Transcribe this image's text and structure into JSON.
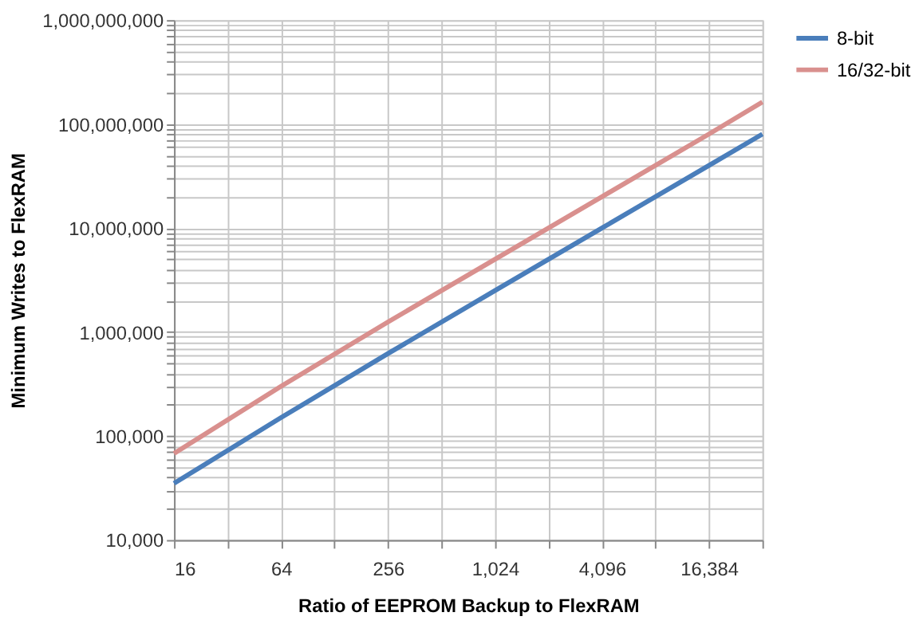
{
  "chart_data": {
    "type": "line",
    "xlabel": "Ratio of EEPROM Backup to FlexRAM",
    "ylabel": "Minimum Writes to FlexRAM",
    "log": "xy",
    "grid": true,
    "legend": "right",
    "marker": "none",
    "line_style": "solid",
    "xlim": [
      16,
      32768
    ],
    "xticks": [
      16,
      {
        "value": 32,
        "label": null
      },
      64,
      {
        "value": 128,
        "label": null
      },
      256,
      {
        "value": 512,
        "label": null
      },
      {
        "value": 1024,
        "label": "1,024"
      },
      {
        "value": 2048,
        "label": null
      },
      {
        "value": 4096,
        "label": "4,096"
      },
      {
        "value": 8192,
        "label": null
      },
      {
        "value": 16384,
        "label": "16,384"
      },
      {
        "value": 32768,
        "label": null
      }
    ],
    "ylim": [
      10000,
      1000000000
    ],
    "yticks": [
      {
        "value": 10000,
        "label": "10,000"
      },
      {
        "value": 20000,
        "label": null
      },
      {
        "value": 30000,
        "label": null
      },
      {
        "value": 40000,
        "label": null
      },
      {
        "value": 50000,
        "label": null
      },
      {
        "value": 60000,
        "label": null
      },
      {
        "value": 70000,
        "label": null
      },
      {
        "value": 80000,
        "label": null
      },
      {
        "value": 90000,
        "label": null
      },
      {
        "value": 100000,
        "label": "100,000"
      },
      {
        "value": 200000,
        "label": null
      },
      {
        "value": 300000,
        "label": null
      },
      {
        "value": 400000,
        "label": null
      },
      {
        "value": 500000,
        "label": null
      },
      {
        "value": 600000,
        "label": null
      },
      {
        "value": 700000,
        "label": null
      },
      {
        "value": 800000,
        "label": null
      },
      {
        "value": 900000,
        "label": null
      },
      {
        "value": 1000000,
        "label": "1,000,000"
      },
      {
        "value": 2000000,
        "label": null
      },
      {
        "value": 3000000,
        "label": null
      },
      {
        "value": 4000000,
        "label": null
      },
      {
        "value": 5000000,
        "label": null
      },
      {
        "value": 6000000,
        "label": null
      },
      {
        "value": 7000000,
        "label": null
      },
      {
        "value": 8000000,
        "label": null
      },
      {
        "value": 9000000,
        "label": null
      },
      {
        "value": 10000000,
        "label": "10,000,000"
      },
      {
        "value": 20000000,
        "label": null
      },
      {
        "value": 30000000,
        "label": null
      },
      {
        "value": 40000000,
        "label": null
      },
      {
        "value": 50000000,
        "label": null
      },
      {
        "value": 60000000,
        "label": null
      },
      {
        "value": 70000000,
        "label": null
      },
      {
        "value": 80000000,
        "label": null
      },
      {
        "value": 90000000,
        "label": null
      },
      {
        "value": 100000000,
        "label": "100,000,000"
      },
      {
        "value": 200000000,
        "label": null
      },
      {
        "value": 300000000,
        "label": null
      },
      {
        "value": 400000000,
        "label": null
      },
      {
        "value": 500000000,
        "label": null
      },
      {
        "value": 600000000,
        "label": null
      },
      {
        "value": 700000000,
        "label": null
      },
      {
        "value": 800000000,
        "label": null
      },
      {
        "value": 900000000,
        "label": null
      },
      {
        "value": 1000000000,
        "label": "1,000,000,000"
      }
    ],
    "x": [
      16,
      64,
      256,
      1024,
      4096,
      16384,
      32768
    ],
    "series": [
      {
        "name": "8-bit",
        "color": "#4a7ebb",
        "values": [
          35000,
          150000,
          620000,
          2500000,
          10000000,
          40000000,
          80000000
        ]
      },
      {
        "name": "16/32-bit",
        "color": "#d9908e",
        "values": [
          68000,
          300000,
          1250000,
          5000000,
          20000000,
          80000000,
          163000000
        ]
      }
    ]
  }
}
